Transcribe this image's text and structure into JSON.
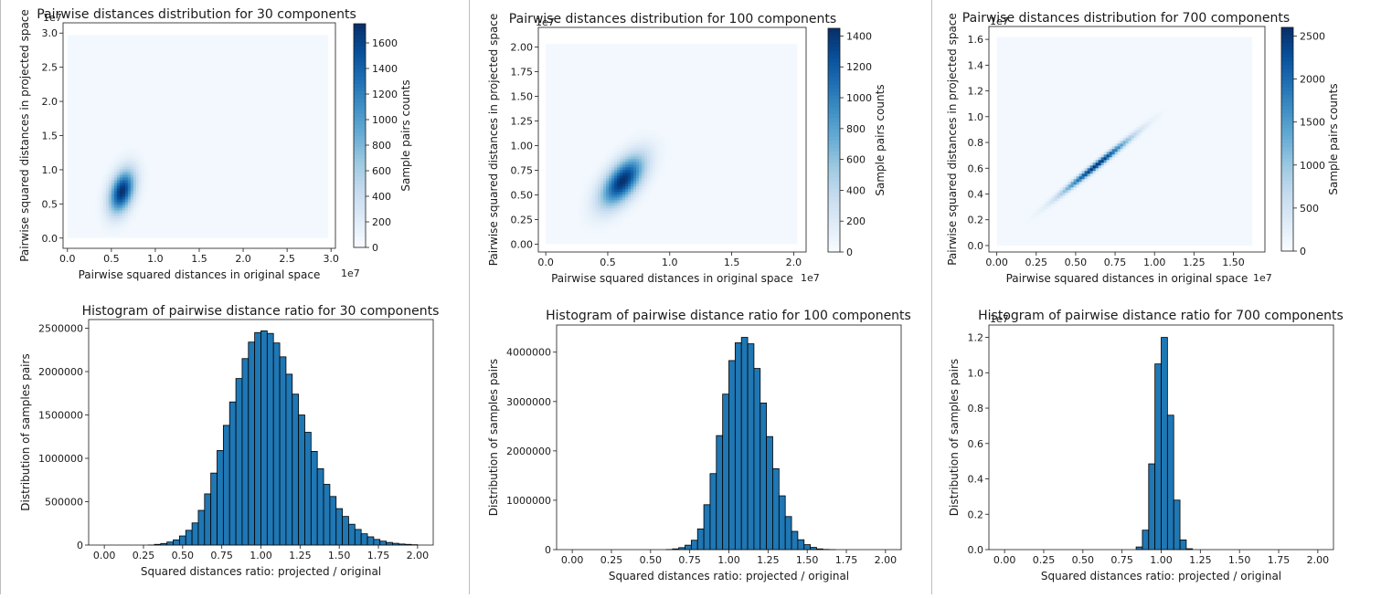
{
  "hexbin_charts": [
    {
      "type": "heatmap",
      "title": "Pairwise distances distribution for 30 components",
      "xlabel": "Pairwise squared distances in original space",
      "ylabel": "Pairwise squared distances in projected space",
      "x_offset": "1e7",
      "y_offset": "1e7",
      "xlim": [
        -0.05,
        3.05
      ],
      "ylim": [
        -0.15,
        3.15
      ],
      "xticks": [
        0.0,
        0.5,
        1.0,
        1.5,
        2.0,
        2.5,
        3.0
      ],
      "xtick_labels": [
        "0.0",
        "0.5",
        "1.0",
        "1.5",
        "2.0",
        "2.5",
        "3.0"
      ],
      "yticks": [
        0.0,
        0.5,
        1.0,
        1.5,
        2.0,
        2.5,
        3.0
      ],
      "ytick_labels": [
        "0.0",
        "0.5",
        "1.0",
        "1.5",
        "2.0",
        "2.5",
        "3.0"
      ],
      "data_extent": [
        0,
        2.97
      ],
      "density_peak": [
        0.62,
        0.68
      ],
      "density_spread": [
        0.1,
        0.2
      ],
      "density_tilt": 0.8,
      "colorbar_label": "Sample pairs counts",
      "colorbar_max": 1750,
      "colorbar_ticks": [
        0,
        200,
        400,
        600,
        800,
        1000,
        1200,
        1400,
        1600
      ],
      "colorbar_tick_labels": [
        "0",
        "200",
        "400",
        "600",
        "800",
        "1000",
        "1200",
        "1400",
        "1600"
      ],
      "colormap": "Blues",
      "grid": false
    },
    {
      "type": "heatmap",
      "title": "Pairwise distances distribution for 100 components",
      "xlabel": "Pairwise squared distances in original space",
      "ylabel": "Pairwise squared distances in projected space",
      "x_offset": "1e7",
      "y_offset": "1e7",
      "xlim": [
        -0.06,
        2.1
      ],
      "ylim": [
        -0.08,
        2.2
      ],
      "xticks": [
        0.0,
        0.5,
        1.0,
        1.5,
        2.0
      ],
      "xtick_labels": [
        "0.0",
        "0.5",
        "1.0",
        "1.5",
        "2.0"
      ],
      "yticks": [
        0.0,
        0.25,
        0.5,
        0.75,
        1.0,
        1.25,
        1.5,
        1.75,
        2.0
      ],
      "ytick_labels": [
        "0.00",
        "0.25",
        "0.50",
        "0.75",
        "1.00",
        "1.25",
        "1.50",
        "1.75",
        "2.00"
      ],
      "data_extent": [
        0,
        2.03
      ],
      "density_peak": [
        0.62,
        0.64
      ],
      "density_spread": [
        0.12,
        0.14
      ],
      "density_tilt": 0.88,
      "colorbar_label": "Sample pairs counts",
      "colorbar_max": 1450,
      "colorbar_ticks": [
        0,
        200,
        400,
        600,
        800,
        1000,
        1200,
        1400
      ],
      "colorbar_tick_labels": [
        "0",
        "200",
        "400",
        "600",
        "800",
        "1000",
        "1200",
        "1400"
      ],
      "colormap": "Blues",
      "grid": false
    },
    {
      "type": "heatmap",
      "title": "Pairwise distances distribution for 700 components",
      "xlabel": "Pairwise squared distances in original space",
      "ylabel": "Pairwise squared distances in projected space",
      "x_offset": "1e7",
      "y_offset": "1e7",
      "xlim": [
        -0.05,
        1.7
      ],
      "ylim": [
        -0.05,
        1.7
      ],
      "xticks": [
        0.0,
        0.25,
        0.5,
        0.75,
        1.0,
        1.25,
        1.5
      ],
      "xtick_labels": [
        "0.00",
        "0.25",
        "0.50",
        "0.75",
        "1.00",
        "1.25",
        "1.50"
      ],
      "yticks": [
        0.0,
        0.2,
        0.4,
        0.6,
        0.8,
        1.0,
        1.2,
        1.4,
        1.6
      ],
      "ytick_labels": [
        "0.0",
        "0.2",
        "0.4",
        "0.6",
        "0.8",
        "1.0",
        "1.2",
        "1.4",
        "1.6"
      ],
      "data_extent": [
        0,
        1.62
      ],
      "density_peak": [
        0.63,
        0.62
      ],
      "density_spread": [
        0.15,
        0.022
      ],
      "density_tilt": 0.98,
      "colorbar_label": "Sample pairs counts",
      "colorbar_max": 2600,
      "colorbar_ticks": [
        0,
        500,
        1000,
        1500,
        2000,
        2500
      ],
      "colorbar_tick_labels": [
        "0",
        "500",
        "1000",
        "1500",
        "2000",
        "2500"
      ],
      "colormap": "Blues",
      "grid": false
    }
  ],
  "chart_data": [
    {
      "type": "bar",
      "title": "Histogram of pairwise distance ratio for 30 components",
      "xlabel": "Squared distances ratio: projected / original",
      "ylabel": "Distribution of samples pairs",
      "y_offset": "",
      "xlim": [
        -0.1,
        2.1
      ],
      "ylim": [
        0,
        2600000
      ],
      "xticks": [
        0.0,
        0.25,
        0.5,
        0.75,
        1.0,
        1.25,
        1.5,
        1.75,
        2.0
      ],
      "xtick_labels": [
        "0.00",
        "0.25",
        "0.50",
        "0.75",
        "1.00",
        "1.25",
        "1.50",
        "1.75",
        "2.00"
      ],
      "yticks": [
        0,
        500000,
        1000000,
        1500000,
        2000000,
        2500000
      ],
      "ytick_labels": [
        "0",
        "500000",
        "1000000",
        "1500000",
        "2000000",
        "2500000"
      ],
      "bin_start": 0.0,
      "bin_width": 0.04,
      "values": [
        0,
        0,
        0,
        0,
        0,
        0,
        0,
        1000,
        8000,
        18000,
        35000,
        60000,
        105000,
        170000,
        255000,
        400000,
        590000,
        830000,
        1090000,
        1380000,
        1650000,
        1920000,
        2150000,
        2340000,
        2450000,
        2470000,
        2440000,
        2330000,
        2170000,
        1970000,
        1740000,
        1500000,
        1300000,
        1080000,
        880000,
        700000,
        560000,
        420000,
        330000,
        240000,
        180000,
        130000,
        95000,
        65000,
        45000,
        30000,
        20000,
        12000,
        8000,
        4000
      ],
      "bar_color": "#1f77b4",
      "grid": false
    },
    {
      "type": "bar",
      "title": "Histogram of pairwise distance ratio for 100 components",
      "xlabel": "Squared distances ratio: projected / original",
      "ylabel": "Distribution of samples pairs",
      "y_offset": "",
      "xlim": [
        -0.1,
        2.1
      ],
      "ylim": [
        0,
        4550000
      ],
      "xticks": [
        0.0,
        0.25,
        0.5,
        0.75,
        1.0,
        1.25,
        1.5,
        1.75,
        2.0
      ],
      "xtick_labels": [
        "0.00",
        "0.25",
        "0.50",
        "0.75",
        "1.00",
        "1.25",
        "1.50",
        "1.75",
        "2.00"
      ],
      "yticks": [
        0,
        1000000,
        2000000,
        3000000,
        4000000
      ],
      "ytick_labels": [
        "0",
        "1000000",
        "2000000",
        "3000000",
        "4000000"
      ],
      "bin_start": 0.0,
      "bin_width": 0.04,
      "values": [
        0,
        0,
        0,
        0,
        0,
        0,
        0,
        0,
        0,
        0,
        0,
        0,
        0,
        0,
        0,
        3000,
        15000,
        40000,
        90000,
        190000,
        420000,
        910000,
        1540000,
        2310000,
        3150000,
        3830000,
        4190000,
        4300000,
        4170000,
        3670000,
        2970000,
        2290000,
        1640000,
        1090000,
        670000,
        370000,
        200000,
        100000,
        45000,
        15000,
        5000,
        1000,
        0,
        0,
        0,
        0,
        0,
        0,
        0,
        0
      ],
      "bar_color": "#1f77b4",
      "grid": false
    },
    {
      "type": "bar",
      "title": "Histogram of pairwise distance ratio for 700 components",
      "xlabel": "Squared distances ratio: projected / original",
      "ylabel": "Distribution of samples pairs",
      "y_offset": "1e7",
      "xlim": [
        -0.1,
        2.1
      ],
      "ylim": [
        0,
        1.27
      ],
      "xticks": [
        0.0,
        0.25,
        0.5,
        0.75,
        1.0,
        1.25,
        1.5,
        1.75,
        2.0
      ],
      "xtick_labels": [
        "0.00",
        "0.25",
        "0.50",
        "0.75",
        "1.00",
        "1.25",
        "1.50",
        "1.75",
        "2.00"
      ],
      "yticks": [
        0,
        0.2,
        0.4,
        0.6,
        0.8,
        1.0,
        1.2
      ],
      "ytick_labels": [
        "0.0",
        "0.2",
        "0.4",
        "0.6",
        "0.8",
        "1.0",
        "1.2"
      ],
      "bin_start": 0.0,
      "bin_width": 0.04,
      "values": [
        0,
        0,
        0,
        0,
        0,
        0,
        0,
        0,
        0,
        0,
        0,
        0,
        0,
        0,
        0,
        0,
        0,
        0,
        0,
        0,
        0,
        0.015,
        0.11,
        0.485,
        1.05,
        1.2,
        0.76,
        0.28,
        0.055,
        0.005,
        0,
        0,
        0,
        0,
        0,
        0,
        0,
        0,
        0,
        0,
        0,
        0,
        0,
        0,
        0,
        0,
        0,
        0,
        0,
        0
      ],
      "bar_color": "#1f77b4",
      "grid": false
    }
  ]
}
